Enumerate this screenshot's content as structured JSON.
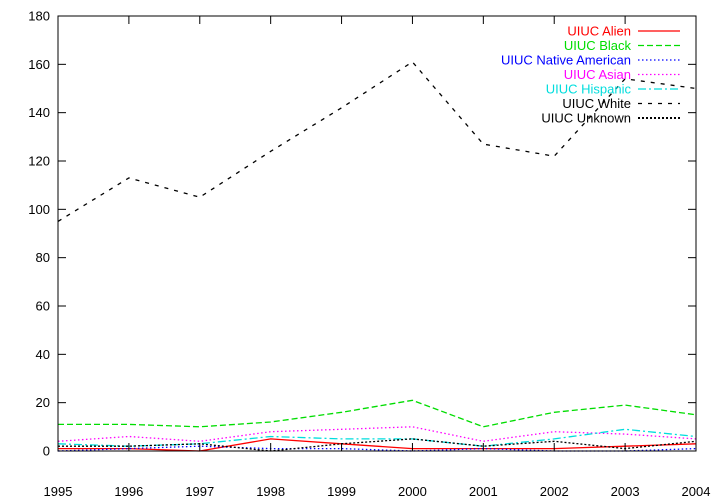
{
  "chart_data": {
    "type": "line",
    "x": [
      1995,
      1996,
      1997,
      1998,
      1999,
      2000,
      2001,
      2002,
      2003,
      2004
    ],
    "xlim": [
      1995,
      2004
    ],
    "ylim": [
      0,
      180
    ],
    "yticks": [
      0,
      20,
      40,
      60,
      80,
      100,
      120,
      140,
      160,
      180
    ],
    "xticks": [
      1995,
      1996,
      1997,
      1998,
      1999,
      2000,
      2001,
      2002,
      2003,
      2004
    ],
    "grid": false,
    "legend_position": "top-right",
    "series": [
      {
        "name": "UIUC Alien",
        "color": "#ff0000",
        "dash": "solid",
        "values": [
          1,
          1,
          0,
          5,
          3,
          1,
          1,
          1,
          2,
          3
        ]
      },
      {
        "name": "UIUC Black",
        "color": "#00dd00",
        "dash": "dashed",
        "values": [
          11,
          11,
          10,
          12,
          16,
          21,
          10,
          16,
          19,
          15
        ]
      },
      {
        "name": "UIUC Native American",
        "color": "#0000ff",
        "dash": "dotted",
        "values": [
          0,
          1,
          2,
          1,
          1,
          0,
          1,
          0,
          0,
          1
        ]
      },
      {
        "name": "UIUC Asian",
        "color": "#ff00ff",
        "dash": "dotted",
        "values": [
          4,
          6,
          4,
          8,
          9,
          10,
          4,
          8,
          7,
          5
        ]
      },
      {
        "name": "UIUC Hispanic",
        "color": "#00dddd",
        "dash": "dashdot",
        "values": [
          3,
          2,
          3,
          6,
          5,
          5,
          2,
          5,
          9,
          6
        ]
      },
      {
        "name": "UIUC White",
        "color": "#000000",
        "dash": "longdash",
        "values": [
          95,
          113,
          105,
          124,
          142,
          161,
          127,
          122,
          154,
          150
        ]
      },
      {
        "name": "UIUC Unknown",
        "color": "#000000",
        "dash": "densedot",
        "values": [
          2,
          2,
          3,
          0,
          3,
          5,
          2,
          4,
          1,
          4
        ]
      }
    ]
  }
}
